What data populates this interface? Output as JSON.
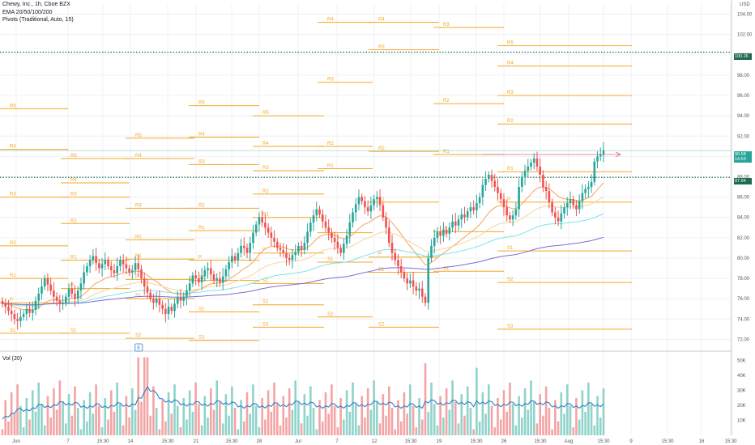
{
  "header": {
    "symbol_line": "Chewy, Inc., 1h, Cboe BZX",
    "ema_line": "EMA 20/50/100/200",
    "pivots_line": "Pivots (Traditional, Auto, 15)",
    "currency": "USD"
  },
  "volume_pane": {
    "label": "Vol (20)"
  },
  "price_tags": {
    "upper_dotted": "100.26",
    "last_price": "90.58",
    "last_time": "14:53",
    "lower_dotted": "87.94"
  },
  "earnings_marker": "E",
  "colors": {
    "up": "#26a69a",
    "down": "#ef5350",
    "pivot": "#f5a623",
    "ema20": "#f7a35c",
    "ema50": "#f5d6a0",
    "ema100": "#7fe3e8",
    "ema200": "#7e6ad6",
    "dotted_line": "#1e6b52",
    "last_price": "#26a69a"
  },
  "chart_data": {
    "type": "candlestick",
    "title": "Chewy, Inc., 1h, Cboe BZX",
    "y_axis": {
      "range": [
        71.0,
        105.0
      ],
      "ticks": [
        "104.00",
        "102.00",
        "100.00",
        "98.00",
        "96.00",
        "94.00",
        "92.00",
        "90.00",
        "88.00",
        "86.00",
        "84.00",
        "82.00",
        "80.00",
        "78.00",
        "76.00",
        "74.00",
        "72.00"
      ]
    },
    "volume_axis": {
      "range": [
        0,
        55000
      ],
      "ticks": [
        "50K",
        "40K",
        "30K",
        "20K",
        "10K"
      ]
    },
    "x_tick_labels": [
      "Jun",
      "7",
      "15:30",
      "14",
      "15:30",
      "21",
      "15:30",
      "28",
      "Jul",
      "7",
      "12",
      "15:30",
      "19",
      "15:30",
      "26",
      "15:30",
      "Aug",
      "15:30",
      "9",
      "15:30",
      "16",
      "15:30"
    ],
    "last_price": 90.58,
    "horizontal_lines": [
      100.26,
      87.94
    ],
    "pivot_periods": [
      {
        "levels": [
          [
            "R5",
            94.7
          ],
          [
            "R4",
            90.7
          ],
          [
            "R3",
            86.0
          ],
          [
            "R2",
            81.2
          ],
          [
            "R1",
            78.0
          ],
          [
            "P",
            75.6
          ],
          [
            "S1",
            72.6
          ]
        ]
      },
      {
        "levels": [
          [
            "R5",
            89.8
          ],
          [
            "R4",
            87.4
          ],
          [
            "R3",
            86.0
          ],
          [
            "R2",
            83.4
          ],
          [
            "R1",
            79.8
          ],
          [
            "P",
            77.0
          ],
          [
            "S1",
            72.6
          ]
        ]
      },
      {
        "levels": [
          [
            "R5",
            91.8
          ],
          [
            "R4",
            89.8
          ],
          [
            "R3",
            84.9
          ],
          [
            "R2",
            81.8
          ],
          [
            "R1",
            79.9
          ],
          [
            "P",
            77.9
          ],
          [
            "S1",
            76.0
          ],
          [
            "S2",
            72.1
          ]
        ]
      },
      {
        "levels": [
          [
            "R5",
            95.0
          ],
          [
            "R4",
            91.9
          ],
          [
            "R3",
            89.2
          ],
          [
            "R2",
            84.9
          ],
          [
            "R1",
            82.7
          ],
          [
            "P",
            79.8
          ],
          [
            "S1",
            77.8
          ],
          [
            "S2",
            74.7
          ],
          [
            "S3",
            71.9
          ]
        ]
      },
      {
        "levels": [
          [
            "R5",
            94.0
          ],
          [
            "R4",
            91.0
          ],
          [
            "R3",
            88.6
          ],
          [
            "R2",
            86.3
          ],
          [
            "R1",
            84.0
          ],
          [
            "P",
            80.5
          ],
          [
            "S1",
            77.5
          ],
          [
            "S2",
            75.4
          ],
          [
            "S3",
            73.2
          ]
        ]
      },
      {
        "levels": [
          [
            "R4",
            103.2
          ],
          [
            "R3",
            97.3
          ],
          [
            "R2",
            91.0
          ],
          [
            "R1",
            88.8
          ],
          [
            "P",
            82.5
          ],
          [
            "S1",
            79.6
          ],
          [
            "S2",
            74.2
          ]
        ]
      },
      {
        "levels": [
          [
            "R4",
            103.2
          ],
          [
            "R3",
            100.5
          ],
          [
            "R2",
            90.5
          ],
          [
            "R1",
            85.5
          ],
          [
            "P",
            80.1
          ],
          [
            "S1",
            78.6
          ],
          [
            "S2",
            73.2
          ]
        ]
      },
      {
        "levels": [
          [
            "R3",
            102.7
          ],
          [
            "R2",
            95.2
          ],
          [
            "R1",
            90.2
          ],
          [
            "P",
            82.6
          ],
          [
            "S1",
            78.7
          ]
        ]
      },
      {
        "levels": [
          [
            "R5",
            100.9
          ],
          [
            "R4",
            98.9
          ],
          [
            "R3",
            96.0
          ],
          [
            "R2",
            93.2
          ],
          [
            "R1",
            88.5
          ],
          [
            "P",
            85.5
          ],
          [
            "S1",
            80.7
          ],
          [
            "S2",
            77.6
          ],
          [
            "S3",
            73.0
          ]
        ]
      }
    ],
    "close_series": [
      75.5,
      75.2,
      74.8,
      74.5,
      74.0,
      73.8,
      74.2,
      74.5,
      75.0,
      74.6,
      74.9,
      75.8,
      76.5,
      77.2,
      78.0,
      77.4,
      76.8,
      76.2,
      75.8,
      75.5,
      75.6,
      76.2,
      77.0,
      76.5,
      76.0,
      76.8,
      77.5,
      78.6,
      79.2,
      79.8,
      80.2,
      79.5,
      79.0,
      79.4,
      79.8,
      79.2,
      78.8,
      78.5,
      79.2,
      79.8,
      79.4,
      79.0,
      78.6,
      78.8,
      79.5,
      78.9,
      78.0,
      77.2,
      76.6,
      76.0,
      75.6,
      76.0,
      75.4,
      75.0,
      74.5,
      75.2,
      74.8,
      75.5,
      76.1,
      75.8,
      76.2,
      76.8,
      77.5,
      78.3,
      78.0,
      77.6,
      78.2,
      78.8,
      79.0,
      78.4,
      77.8,
      78.0,
      77.6,
      78.2,
      78.9,
      79.6,
      80.2,
      79.8,
      80.5,
      81.2,
      81.0,
      80.5,
      81.5,
      82.5,
      83.3,
      84.0,
      83.5,
      83.0,
      82.5,
      82.0,
      81.6,
      81.0,
      80.8,
      80.5,
      80.0,
      79.8,
      80.3,
      80.6,
      81.2,
      80.8,
      81.5,
      82.6,
      83.5,
      84.2,
      84.8,
      84.3,
      83.6,
      83.0,
      82.5,
      82.0,
      81.6,
      81.0,
      80.5,
      81.4,
      82.2,
      83.5,
      84.5,
      85.3,
      86.0,
      85.6,
      85.0,
      84.6,
      85.2,
      85.8,
      86.0,
      85.2,
      84.0,
      83.0,
      81.5,
      80.5,
      79.8,
      79.2,
      78.6,
      78.0,
      77.5,
      77.8,
      77.2,
      76.8,
      77.0,
      76.2,
      75.6,
      80.0,
      81.2,
      82.0,
      82.6,
      82.2,
      82.8,
      82.4,
      83.0,
      83.6,
      83.2,
      83.8,
      84.3,
      84.0,
      84.6,
      85.0,
      84.7,
      85.4,
      86.0,
      87.2,
      87.8,
      88.2,
      87.6,
      87.0,
      86.4,
      85.8,
      85.0,
      84.2,
      83.8,
      84.2,
      84.8,
      87.0,
      88.0,
      88.6,
      89.0,
      89.4,
      89.8,
      89.0,
      88.2,
      87.0,
      86.6,
      85.5,
      84.5,
      84.0,
      83.6,
      84.4,
      85.0,
      85.4,
      85.8,
      85.2,
      84.8,
      85.6,
      86.4,
      86.8,
      87.0,
      87.5,
      89.5,
      90.0,
      90.2,
      90.58
    ]
  }
}
